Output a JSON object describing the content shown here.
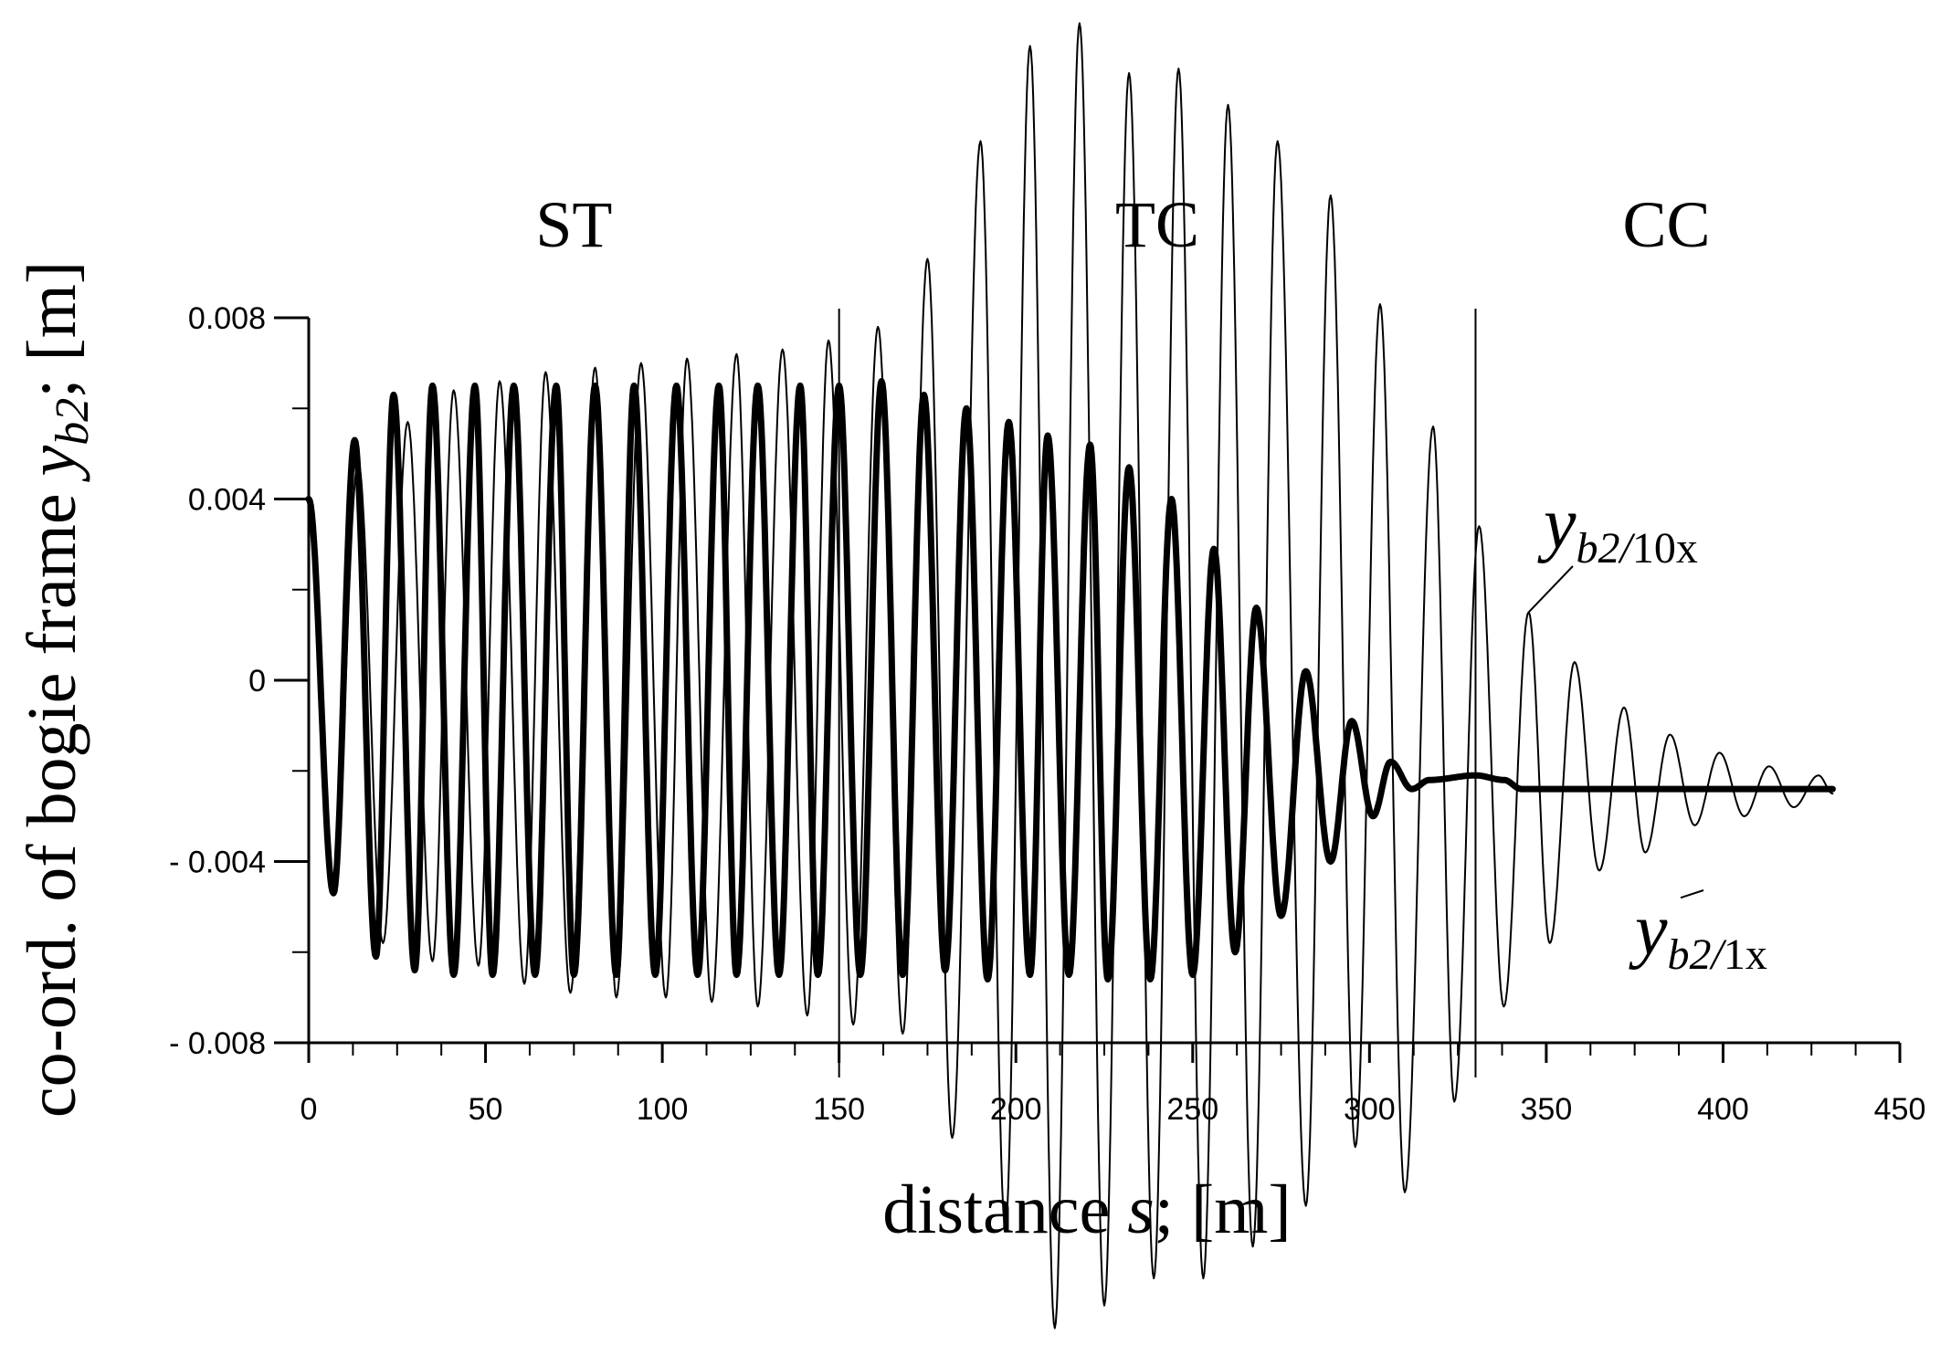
{
  "chart_data": {
    "type": "line",
    "xlabel_prefix": "distance ",
    "xlabel_var": "s",
    "xlabel_suffix": "; [m]",
    "ylabel_prefix": "co-ord. of bogie frame ",
    "ylabel_var": "y",
    "ylabel_sub": "b2",
    "ylabel_suffix": "; [m]",
    "xlim": [
      0,
      450
    ],
    "ylim": [
      -0.008,
      0.008
    ],
    "x_ticks": [
      {
        "value": 0,
        "label": "0"
      },
      {
        "value": 50,
        "label": "50"
      },
      {
        "value": 100,
        "label": "100"
      },
      {
        "value": 150,
        "label": "150"
      },
      {
        "value": 200,
        "label": "200"
      },
      {
        "value": 250,
        "label": "250"
      },
      {
        "value": 300,
        "label": "300"
      },
      {
        "value": 350,
        "label": "350"
      },
      {
        "value": 400,
        "label": "400"
      },
      {
        "value": 450,
        "label": "450"
      }
    ],
    "y_ticks": [
      {
        "value": 0.008,
        "label": "0.008"
      },
      {
        "value": 0.004,
        "label": "0.004"
      },
      {
        "value": 0,
        "label": "0"
      },
      {
        "value": -0.004,
        "label": "- 0.004"
      },
      {
        "value": -0.008,
        "label": "- 0.008"
      }
    ],
    "section_boundaries": [
      150,
      330
    ],
    "regions": [
      {
        "label": "ST",
        "x": 75
      },
      {
        "label": "TC",
        "x": 240
      },
      {
        "label": "CC",
        "x": 384
      }
    ],
    "series": [
      {
        "name_var": "y",
        "name_sub_var": "b2/",
        "name_sub_txt": "10x",
        "style": "thin",
        "label_anchor": {
          "x": 345,
          "y": 0.0015
        },
        "extrema": [
          [
            0,
            0.004
          ],
          [
            7,
            -0.0047
          ],
          [
            14,
            0.0048
          ],
          [
            21,
            -0.0058
          ],
          [
            28,
            0.0057
          ],
          [
            35,
            -0.0062
          ],
          [
            41,
            0.0064
          ],
          [
            48,
            -0.0063
          ],
          [
            54,
            0.0066
          ],
          [
            61,
            -0.0067
          ],
          [
            67,
            0.0068
          ],
          [
            74,
            -0.0069
          ],
          [
            81,
            0.0069
          ],
          [
            87,
            -0.007
          ],
          [
            94,
            0.007
          ],
          [
            101,
            -0.007
          ],
          [
            107,
            0.0071
          ],
          [
            114,
            -0.0071
          ],
          [
            121,
            0.0072
          ],
          [
            127,
            -0.0072
          ],
          [
            134,
            0.0073
          ],
          [
            141,
            -0.0074
          ],
          [
            147,
            0.0075
          ],
          [
            154,
            -0.0076
          ],
          [
            161,
            0.0078
          ],
          [
            168,
            -0.0078
          ],
          [
            175,
            0.0093
          ],
          [
            182,
            -0.0101
          ],
          [
            190,
            0.0119
          ],
          [
            197,
            -0.0121
          ],
          [
            204,
            0.014
          ],
          [
            211,
            -0.0143
          ],
          [
            218,
            0.0145
          ],
          [
            225,
            -0.0138
          ],
          [
            232,
            0.0134
          ],
          [
            239,
            -0.0132
          ],
          [
            246,
            0.0135
          ],
          [
            253,
            -0.0132
          ],
          [
            260,
            0.0127
          ],
          [
            267,
            -0.0125
          ],
          [
            274,
            0.0119
          ],
          [
            282,
            -0.0116
          ],
          [
            289,
            0.0107
          ],
          [
            296,
            -0.0103
          ],
          [
            303,
            0.0083
          ],
          [
            310,
            -0.0113
          ],
          [
            318,
            0.0056
          ],
          [
            324,
            -0.0093
          ],
          [
            331,
            0.0034
          ],
          [
            338,
            -0.0072
          ],
          [
            345,
            0.0015
          ],
          [
            351,
            -0.0058
          ],
          [
            358,
            0.0004
          ],
          [
            365,
            -0.0042
          ],
          [
            372,
            -0.0006
          ],
          [
            378,
            -0.0038
          ],
          [
            385,
            -0.0012
          ],
          [
            392,
            -0.0032
          ],
          [
            399,
            -0.0016
          ],
          [
            406,
            -0.003
          ],
          [
            413,
            -0.0019
          ],
          [
            420,
            -0.0028
          ],
          [
            427,
            -0.0021
          ],
          [
            431,
            -0.0025
          ]
        ]
      },
      {
        "name_var": "y",
        "name_sub_var": "b2/",
        "name_sub_txt": "1x",
        "style": "thick",
        "label_anchor": {
          "x": 388,
          "y": -0.0048
        },
        "extrema": [
          [
            0,
            0.004
          ],
          [
            7,
            -0.0047
          ],
          [
            13,
            0.0053
          ],
          [
            19,
            -0.0061
          ],
          [
            24,
            0.0063
          ],
          [
            30,
            -0.0064
          ],
          [
            35,
            0.0065
          ],
          [
            41,
            -0.0065
          ],
          [
            47,
            0.0065
          ],
          [
            52,
            -0.0065
          ],
          [
            58,
            0.0065
          ],
          [
            64,
            -0.0065
          ],
          [
            70,
            0.0065
          ],
          [
            75,
            -0.0065
          ],
          [
            81,
            0.0065
          ],
          [
            87,
            -0.0065
          ],
          [
            92,
            0.0065
          ],
          [
            98,
            -0.0065
          ],
          [
            104,
            0.0065
          ],
          [
            110,
            -0.0065
          ],
          [
            116,
            0.0065
          ],
          [
            121,
            -0.0065
          ],
          [
            127,
            0.0065
          ],
          [
            133,
            -0.0065
          ],
          [
            139,
            0.0065
          ],
          [
            144,
            -0.0065
          ],
          [
            150,
            0.0065
          ],
          [
            156,
            -0.0065
          ],
          [
            162,
            0.0066
          ],
          [
            168,
            -0.0065
          ],
          [
            174,
            0.0063
          ],
          [
            180,
            -0.0064
          ],
          [
            186,
            0.006
          ],
          [
            192,
            -0.0066
          ],
          [
            198,
            0.0057
          ],
          [
            204,
            -0.0065
          ],
          [
            209,
            0.0054
          ],
          [
            215,
            -0.0065
          ],
          [
            221,
            0.0052
          ],
          [
            226,
            -0.0066
          ],
          [
            232,
            0.0047
          ],
          [
            238,
            -0.0066
          ],
          [
            244,
            0.004
          ],
          [
            250,
            -0.0065
          ],
          [
            256,
            0.0029
          ],
          [
            262,
            -0.006
          ],
          [
            268,
            0.0016
          ],
          [
            275,
            -0.0052
          ],
          [
            282,
            0.0002
          ],
          [
            289,
            -0.004
          ],
          [
            295,
            -0.0009
          ],
          [
            301,
            -0.003
          ],
          [
            306,
            -0.0018
          ],
          [
            312,
            -0.0024
          ],
          [
            317,
            -0.0022
          ],
          [
            330,
            -0.0021
          ],
          [
            338,
            -0.0022
          ],
          [
            343,
            -0.0024
          ],
          [
            431,
            -0.0024
          ]
        ]
      }
    ]
  }
}
